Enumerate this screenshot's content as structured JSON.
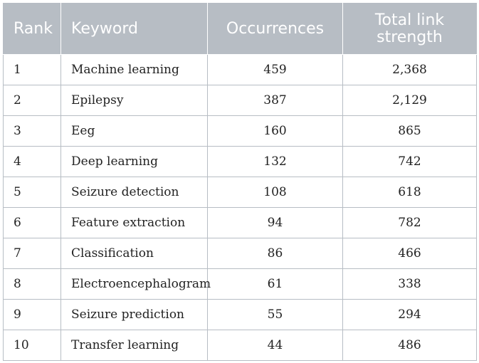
{
  "table": {
    "headers": [
      "Rank",
      "Keyword",
      "Occurrences",
      "Total link strength"
    ],
    "rows": [
      [
        "1",
        "Machine learning",
        "459",
        "2,368"
      ],
      [
        "2",
        "Epilepsy",
        "387",
        "2,129"
      ],
      [
        "3",
        "Eeg",
        "160",
        "865"
      ],
      [
        "4",
        "Deep learning",
        "132",
        "742"
      ],
      [
        "5",
        "Seizure detection",
        "108",
        "618"
      ],
      [
        "6",
        "Feature extraction",
        "94",
        "782"
      ],
      [
        "7",
        "Classification",
        "86",
        "466"
      ],
      [
        "8",
        "Electroencephalogram",
        "61",
        "338"
      ],
      [
        "9",
        "Seizure prediction",
        "55",
        "294"
      ],
      [
        "10",
        "Transfer learning",
        "44",
        "486"
      ]
    ]
  },
  "colors": {
    "header_bg": "#b7bdc4",
    "header_text": "#ffffff",
    "grid": "#b7bdc4",
    "cell_text": "#222222"
  }
}
